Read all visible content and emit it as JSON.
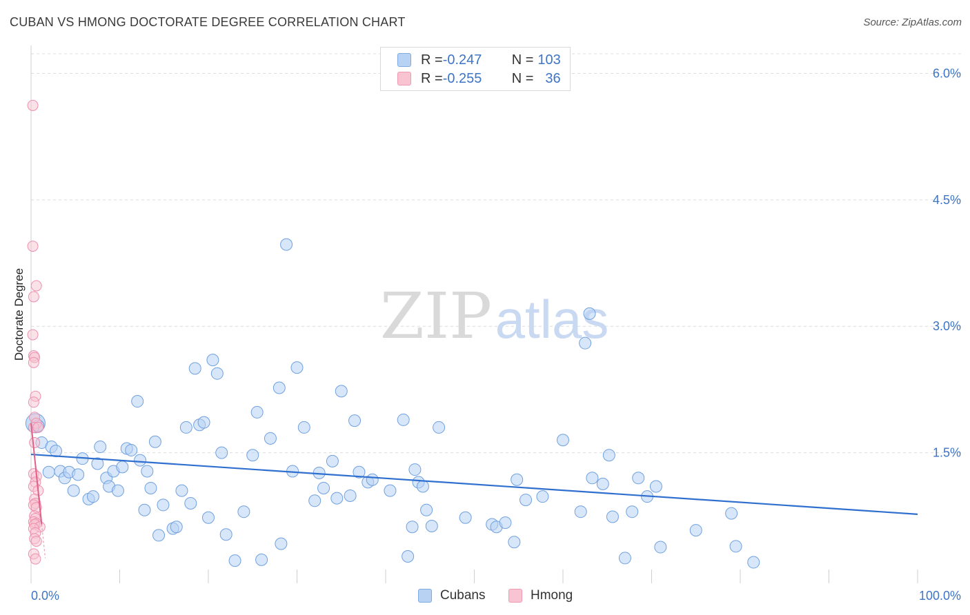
{
  "title": "CUBAN VS HMONG DOCTORATE DEGREE CORRELATION CHART",
  "source": "Source: ZipAtlas.com",
  "watermark": {
    "zip": "ZIP",
    "atlas": "atlas"
  },
  "legend": {
    "rows": [
      {
        "r_label": "R = ",
        "r_value": "-0.247",
        "n_label": "N = ",
        "n_value": "103",
        "color": "#b8d2f4"
      },
      {
        "r_label": "R = ",
        "r_value": "-0.255",
        "n_label": "N = ",
        "n_value": "36",
        "color": "#f8c4d2"
      }
    ]
  },
  "bottom_legend": [
    {
      "label": "Cubans",
      "color": "#b8d2f4"
    },
    {
      "label": "Hmong",
      "color": "#f8c4d2"
    }
  ],
  "chart_data": {
    "type": "scatter",
    "title": "CUBAN VS HMONG DOCTORATE DEGREE CORRELATION CHART",
    "ylabel": "Doctorate Degree",
    "xlabel": "",
    "xlim": [
      0,
      100
    ],
    "ylim": [
      0,
      6.2
    ],
    "x_tick_labels": [
      "0.0%",
      "100.0%"
    ],
    "y_ticks": [
      1.5,
      3.0,
      4.5,
      6.0
    ],
    "y_tick_labels": [
      "1.5%",
      "3.0%",
      "4.5%",
      "6.0%"
    ],
    "grid": true,
    "legend_position": "top-center",
    "series": [
      {
        "name": "Cubans",
        "color": "#6fa0df",
        "fill": "#b8d2f4",
        "trend": {
          "x": [
            0,
            100
          ],
          "y": [
            1.48,
            0.77
          ]
        },
        "points": [
          [
            0.5,
            1.85
          ],
          [
            1.2,
            1.62
          ],
          [
            2.0,
            1.27
          ],
          [
            2.3,
            1.57
          ],
          [
            2.8,
            1.52
          ],
          [
            3.3,
            1.28
          ],
          [
            3.8,
            1.2
          ],
          [
            4.3,
            1.27
          ],
          [
            4.8,
            1.05
          ],
          [
            5.3,
            1.24
          ],
          [
            5.8,
            1.43
          ],
          [
            6.5,
            0.95
          ],
          [
            7.0,
            0.98
          ],
          [
            7.5,
            1.37
          ],
          [
            7.8,
            1.57
          ],
          [
            8.5,
            1.2
          ],
          [
            8.8,
            1.1
          ],
          [
            9.3,
            1.28
          ],
          [
            9.8,
            1.05
          ],
          [
            10.3,
            1.33
          ],
          [
            10.8,
            1.55
          ],
          [
            11.3,
            1.53
          ],
          [
            12.0,
            2.11
          ],
          [
            12.3,
            1.41
          ],
          [
            12.8,
            0.82
          ],
          [
            13.1,
            1.28
          ],
          [
            13.5,
            1.08
          ],
          [
            14.0,
            1.63
          ],
          [
            14.4,
            0.52
          ],
          [
            14.9,
            0.88
          ],
          [
            16.0,
            0.6
          ],
          [
            16.4,
            0.62
          ],
          [
            17.0,
            1.05
          ],
          [
            17.5,
            1.8
          ],
          [
            18.0,
            0.9
          ],
          [
            18.5,
            2.5
          ],
          [
            19.0,
            1.83
          ],
          [
            19.5,
            1.86
          ],
          [
            20.0,
            0.73
          ],
          [
            20.5,
            2.6
          ],
          [
            21.0,
            2.44
          ],
          [
            21.5,
            1.5
          ],
          [
            22.0,
            0.53
          ],
          [
            23.0,
            0.22
          ],
          [
            24.0,
            0.8
          ],
          [
            25.0,
            1.47
          ],
          [
            25.5,
            1.98
          ],
          [
            26.0,
            0.23
          ],
          [
            27.0,
            1.67
          ],
          [
            28.0,
            2.27
          ],
          [
            28.2,
            0.42
          ],
          [
            28.8,
            3.97
          ],
          [
            29.5,
            1.28
          ],
          [
            30.0,
            2.51
          ],
          [
            30.8,
            1.8
          ],
          [
            32.0,
            0.93
          ],
          [
            32.5,
            1.26
          ],
          [
            33.0,
            1.08
          ],
          [
            34.0,
            1.4
          ],
          [
            34.5,
            0.96
          ],
          [
            35.0,
            2.23
          ],
          [
            36.0,
            0.99
          ],
          [
            36.5,
            1.88
          ],
          [
            37.0,
            1.27
          ],
          [
            38.0,
            1.15
          ],
          [
            38.5,
            1.18
          ],
          [
            40.5,
            1.05
          ],
          [
            42.0,
            1.89
          ],
          [
            42.5,
            0.27
          ],
          [
            43.0,
            0.62
          ],
          [
            43.3,
            1.3
          ],
          [
            43.7,
            1.15
          ],
          [
            44.2,
            1.1
          ],
          [
            44.6,
            0.82
          ],
          [
            45.2,
            0.63
          ],
          [
            46.0,
            1.8
          ],
          [
            49.0,
            0.73
          ],
          [
            52.0,
            0.65
          ],
          [
            52.5,
            0.62
          ],
          [
            53.5,
            0.67
          ],
          [
            54.5,
            0.44
          ],
          [
            54.8,
            1.18
          ],
          [
            55.8,
            0.94
          ],
          [
            57.7,
            0.98
          ],
          [
            60.0,
            1.65
          ],
          [
            62.0,
            0.8
          ],
          [
            62.5,
            2.8
          ],
          [
            63.0,
            3.15
          ],
          [
            63.3,
            1.2
          ],
          [
            64.5,
            1.13
          ],
          [
            65.2,
            1.47
          ],
          [
            65.6,
            0.74
          ],
          [
            67.0,
            0.25
          ],
          [
            67.8,
            0.8
          ],
          [
            68.5,
            1.2
          ],
          [
            69.5,
            0.98
          ],
          [
            70.5,
            1.1
          ],
          [
            71.0,
            0.38
          ],
          [
            75.0,
            0.58
          ],
          [
            79.0,
            0.78
          ],
          [
            79.5,
            0.39
          ],
          [
            81.5,
            0.2
          ],
          [
            0.8,
            1.82
          ]
        ]
      },
      {
        "name": "Hmong",
        "color": "#ee8fae",
        "fill": "#f8c4d2",
        "trend": {
          "x": [
            0,
            1.2
          ],
          "y": [
            1.85,
            0.65
          ]
        },
        "points": [
          [
            0.2,
            5.62
          ],
          [
            0.2,
            3.95
          ],
          [
            0.3,
            3.35
          ],
          [
            0.6,
            3.48
          ],
          [
            0.2,
            2.9
          ],
          [
            0.3,
            2.65
          ],
          [
            0.4,
            2.63
          ],
          [
            0.3,
            2.57
          ],
          [
            0.5,
            2.17
          ],
          [
            0.3,
            2.1
          ],
          [
            0.4,
            1.92
          ],
          [
            0.6,
            1.85
          ],
          [
            0.3,
            1.8
          ],
          [
            0.8,
            1.8
          ],
          [
            0.4,
            1.62
          ],
          [
            0.3,
            1.25
          ],
          [
            0.6,
            1.22
          ],
          [
            0.5,
            1.15
          ],
          [
            0.3,
            1.1
          ],
          [
            0.8,
            1.05
          ],
          [
            0.4,
            0.95
          ],
          [
            0.5,
            0.9
          ],
          [
            0.3,
            0.88
          ],
          [
            0.6,
            0.85
          ],
          [
            0.4,
            0.75
          ],
          [
            0.5,
            0.72
          ],
          [
            0.3,
            0.68
          ],
          [
            0.6,
            0.66
          ],
          [
            0.4,
            0.65
          ],
          [
            1.0,
            0.62
          ],
          [
            0.3,
            0.6
          ],
          [
            0.5,
            0.55
          ],
          [
            0.4,
            0.48
          ],
          [
            0.6,
            0.45
          ],
          [
            0.3,
            0.3
          ],
          [
            0.5,
            0.24
          ]
        ]
      }
    ]
  }
}
